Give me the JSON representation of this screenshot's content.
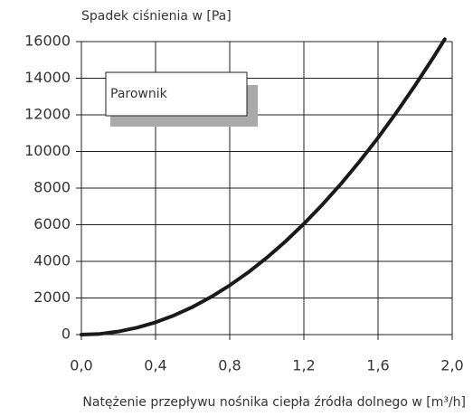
{
  "chart_data": {
    "type": "line",
    "ylabel": "Spadek ciśnienia w [Pa]",
    "xlabel": "Natężenie przepływu nośnika ciepła źródła dolnego w [m³/h]",
    "x": [
      0,
      0.1,
      0.2,
      0.3,
      0.4,
      0.5,
      0.6,
      0.7,
      0.8,
      0.9,
      1.0,
      1.1,
      1.2,
      1.3,
      1.4,
      1.5,
      1.6,
      1.7,
      1.8,
      1.9,
      1.96
    ],
    "series": [
      {
        "name": "Parownik",
        "color": "#1a1a1a",
        "values": [
          0,
          40,
          170,
          380,
          670,
          1050,
          1510,
          2060,
          2690,
          3400,
          4200,
          5080,
          6050,
          7100,
          8230,
          9450,
          10750,
          12140,
          13610,
          15160,
          16130
        ]
      }
    ],
    "xlim": [
      0,
      2.0
    ],
    "xticks": [
      {
        "value": 0,
        "label": "0,0"
      },
      {
        "value": 0.4,
        "label": "0,4"
      },
      {
        "value": 0.8,
        "label": "0,8"
      },
      {
        "value": 1.2,
        "label": "1,2"
      },
      {
        "value": 1.6,
        "label": "1,6"
      },
      {
        "value": 2.0,
        "label": "2,0"
      }
    ],
    "ylim": [
      0,
      16000
    ],
    "yticks": [
      0,
      2000,
      4000,
      6000,
      8000,
      10000,
      12000,
      14000,
      16000
    ],
    "grid": true,
    "legend": "top-left"
  }
}
